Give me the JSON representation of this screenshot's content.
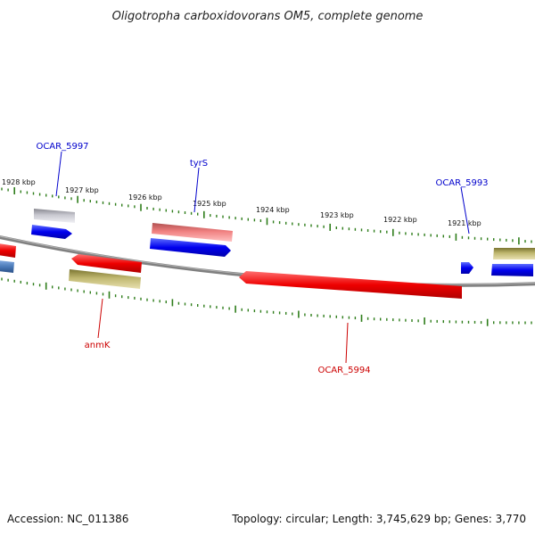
{
  "title": "Oligotropha carboxidovorans OM5, complete genome",
  "footer": {
    "accession": "Accession: NC_011386",
    "summary": "Topology: circular; Length: 3,745,629 bp; Genes: 3,770"
  },
  "tick_labels": [
    "1928 kbp",
    "1927 kbp",
    "1926 kbp",
    "1925 kbp",
    "1924 kbp",
    "1923 kbp",
    "1922 kbp",
    "1921 kbp"
  ],
  "gene_labels": [
    {
      "text": "OCAR_5997",
      "color": "#0000cc"
    },
    {
      "text": "tyrS",
      "color": "#0000cc"
    },
    {
      "text": "OCAR_5993",
      "color": "#0000cc"
    },
    {
      "text": "anmK",
      "color": "#cc0000"
    },
    {
      "text": "OCAR_5994",
      "color": "#cc0000"
    }
  ],
  "colors": {
    "backbone": "#808080",
    "tick": "#2e7d1a",
    "blue_feature": "#0000ee",
    "red_feature": "#ee0000",
    "pink_feature": "#e06868",
    "khaki_feature": "#b0a860",
    "grey_feature": "#b8b8c0",
    "steel_feature": "#4a7ab8"
  }
}
